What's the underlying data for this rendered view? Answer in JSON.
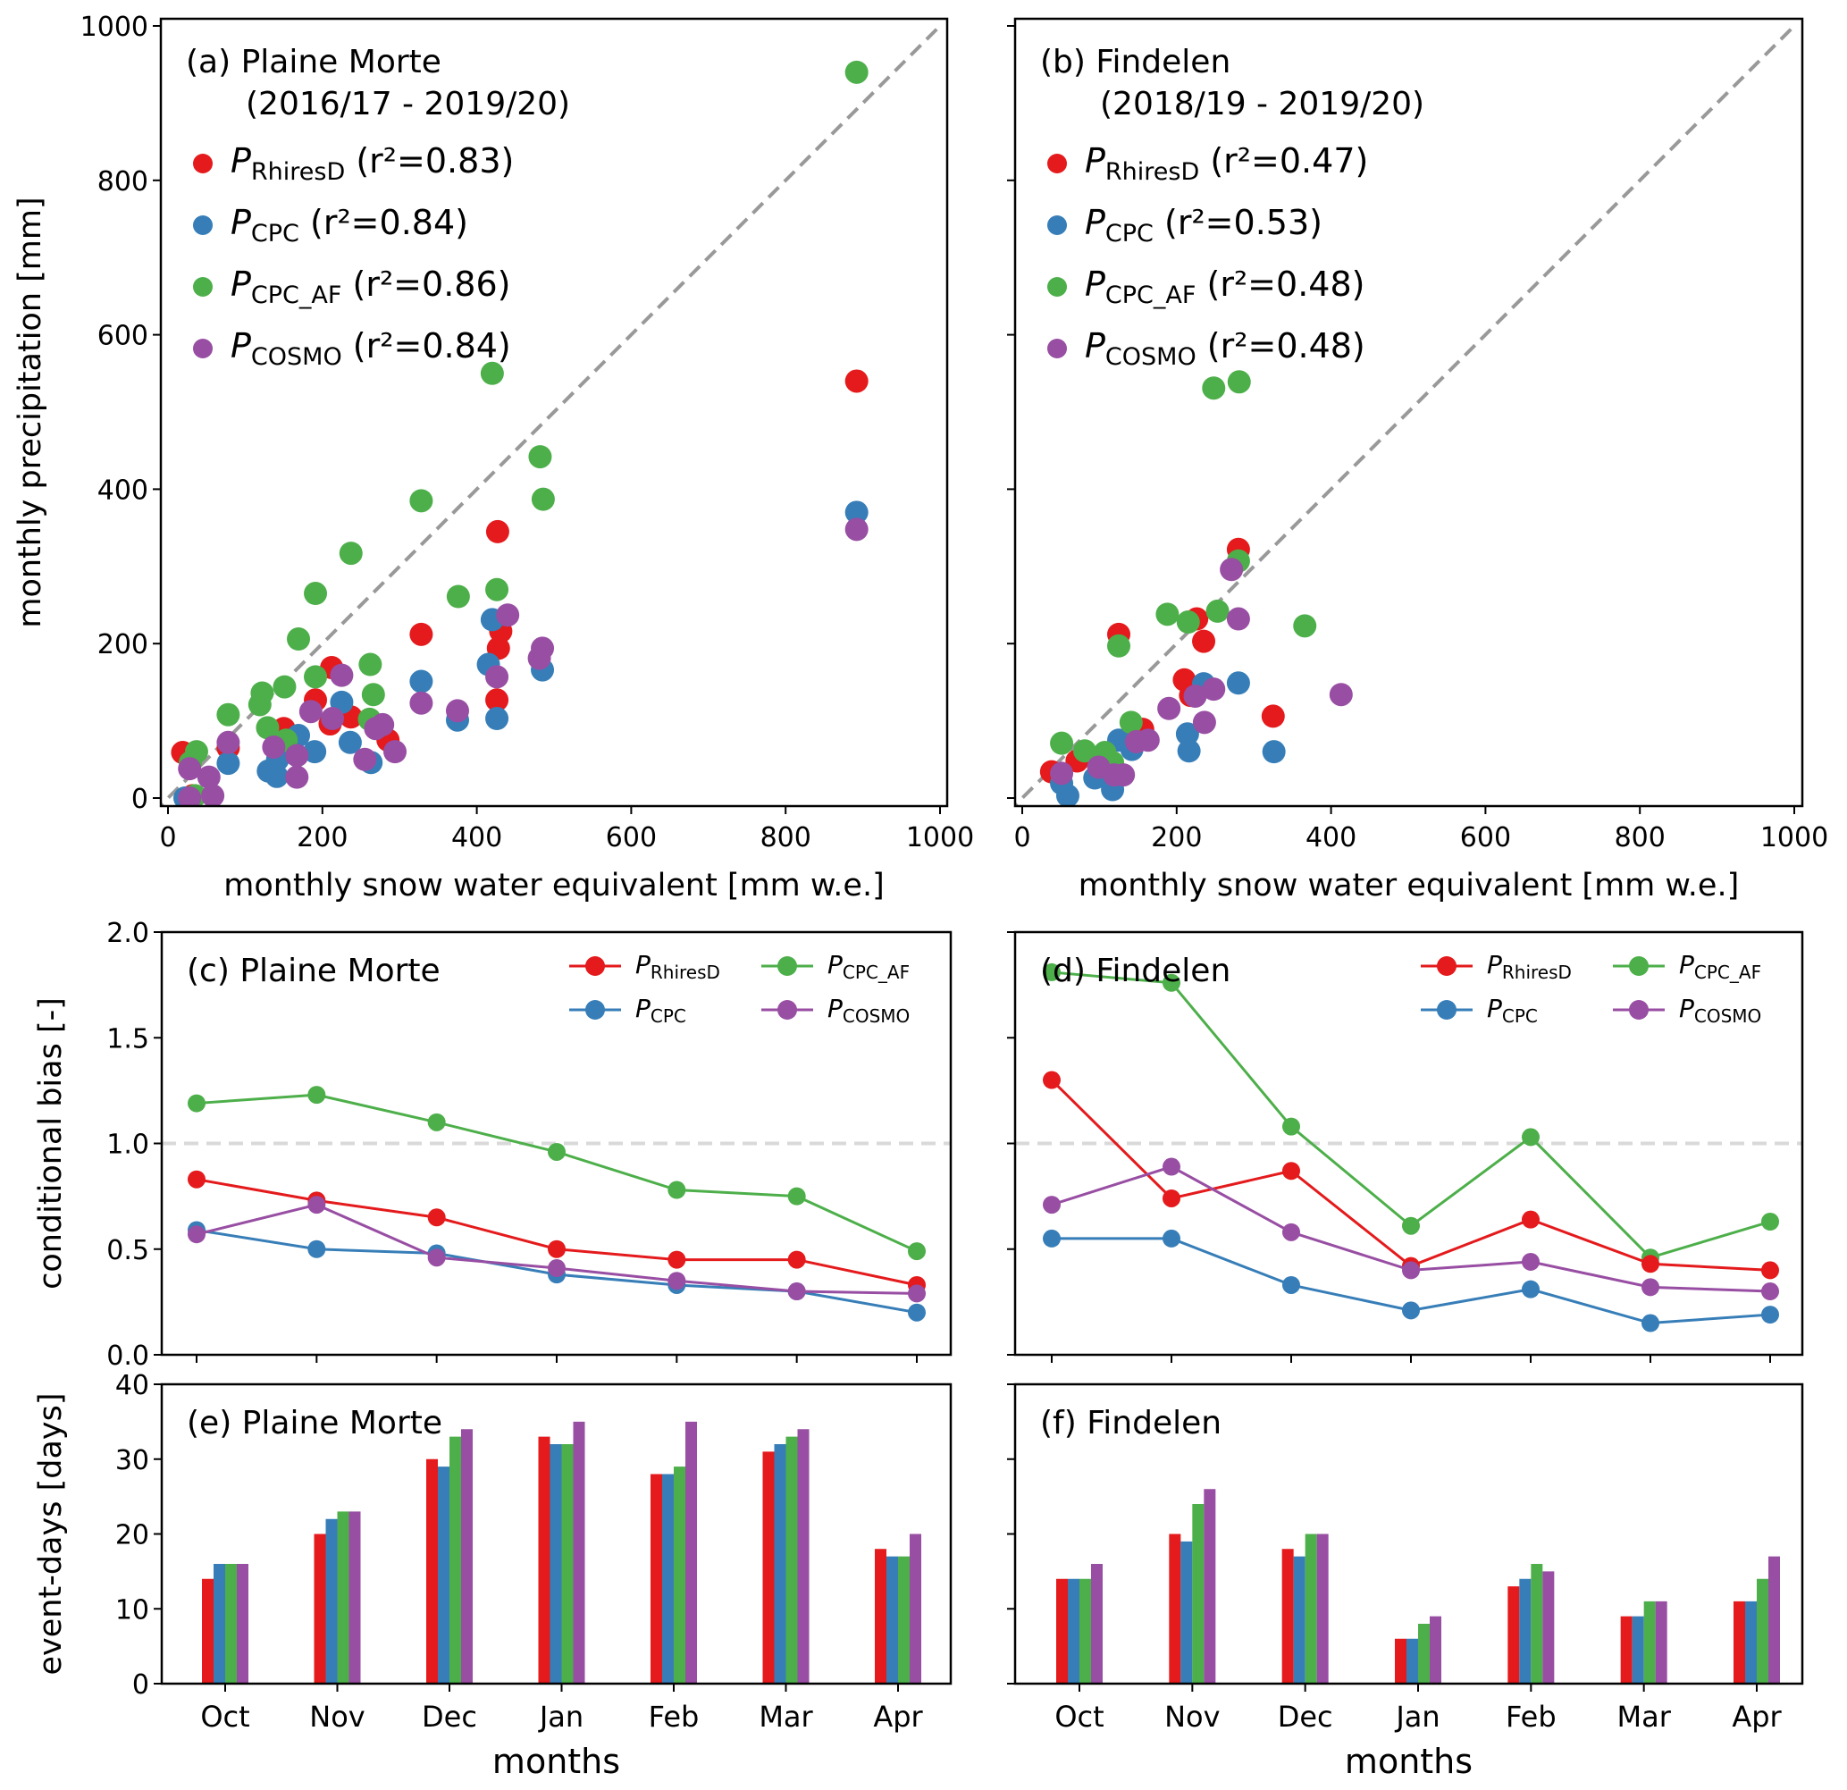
{
  "figure": {
    "colors": {
      "RhiresD": "#e41a1c",
      "CPC": "#377eb8",
      "CPC_AF": "#4daf4a",
      "COSMO": "#984ea3",
      "one_to_one": "#999999",
      "reference_line": "#d9d9d9"
    }
  },
  "chart_data": [
    {
      "id": "a",
      "type": "scatter",
      "title": "(a) Plaine Morte",
      "subtitle": "(2016/17 - 2019/20)",
      "xlabel": "monthly snow water equivalent [mm w.e.]",
      "ylabel": "monthly precipitation [mm]",
      "xlim": [
        0,
        1000
      ],
      "ylim": [
        0,
        1000
      ],
      "xticks": [
        "0",
        "200",
        "400",
        "600",
        "800",
        "1000"
      ],
      "yticks": [
        "0",
        "200",
        "400",
        "600",
        "800",
        "1000"
      ],
      "one_to_one_line": true,
      "legend": [
        {
          "key": "RhiresD",
          "label": "P",
          "sub": "RhiresD",
          "stat": " (r²=0.83)"
        },
        {
          "key": "CPC",
          "label": "P",
          "sub": "CPC",
          "stat": " (r²=0.84)"
        },
        {
          "key": "CPC_AF",
          "label": "P",
          "sub": "CPC_AF",
          "stat": " (r²=0.86)"
        },
        {
          "key": "COSMO",
          "label": "P",
          "sub": "COSMO",
          "stat": " (r²=0.84)"
        }
      ],
      "series": [
        {
          "key": "RhiresD",
          "name": "P_RhiresD",
          "points": [
            [
              892,
              540
            ],
            [
              427,
              345
            ],
            [
              328,
              212
            ],
            [
              431,
              216
            ],
            [
              428,
              194
            ],
            [
              426,
              127
            ],
            [
              212,
              169
            ],
            [
              191,
              127
            ],
            [
              237,
              105
            ],
            [
              210,
              96
            ],
            [
              150,
              90
            ],
            [
              285,
              75
            ],
            [
              19,
              59
            ],
            [
              142,
              62
            ],
            [
              78,
              65
            ],
            [
              32,
              3
            ]
          ]
        },
        {
          "key": "CPC",
          "name": "P_CPC",
          "points": [
            [
              892,
              370
            ],
            [
              420,
              231
            ],
            [
              415,
              173
            ],
            [
              485,
              166
            ],
            [
              328,
              151
            ],
            [
              375,
              101
            ],
            [
              426,
              103
            ],
            [
              225,
              124
            ],
            [
              236,
              72
            ],
            [
              263,
              46
            ],
            [
              190,
              60
            ],
            [
              169,
              81
            ],
            [
              78,
              45
            ],
            [
              130,
              35
            ],
            [
              141,
              28
            ],
            [
              142,
              50
            ],
            [
              22,
              0
            ]
          ]
        },
        {
          "key": "CPC_AF",
          "name": "P_CPC_AF",
          "points": [
            [
              892,
              940
            ],
            [
              482,
              442
            ],
            [
              486,
              387
            ],
            [
              328,
              385
            ],
            [
              237,
              317
            ],
            [
              191,
              265
            ],
            [
              169,
              206
            ],
            [
              376,
              261
            ],
            [
              426,
              270
            ],
            [
              262,
              173
            ],
            [
              266,
              134
            ],
            [
              191,
              157
            ],
            [
              151,
              144
            ],
            [
              122,
              136
            ],
            [
              119,
              121
            ],
            [
              78,
              108
            ],
            [
              129,
              91
            ],
            [
              153,
              75
            ],
            [
              37,
              60
            ],
            [
              261,
              102
            ],
            [
              29,
              46
            ],
            [
              420,
              550
            ],
            [
              35,
              3
            ]
          ]
        },
        {
          "key": "COSMO",
          "name": "P_COSMO",
          "points": [
            [
              892,
              348
            ],
            [
              440,
              237
            ],
            [
              485,
              194
            ],
            [
              481,
              181
            ],
            [
              426,
              157
            ],
            [
              328,
              123
            ],
            [
              375,
              113
            ],
            [
              225,
              159
            ],
            [
              185,
              112
            ],
            [
              213,
              103
            ],
            [
              278,
              95
            ],
            [
              269,
              90
            ],
            [
              294,
              60
            ],
            [
              255,
              50
            ],
            [
              78,
              72
            ],
            [
              167,
              27
            ],
            [
              137,
              66
            ],
            [
              167,
              55
            ],
            [
              28,
              38
            ],
            [
              53,
              27
            ],
            [
              58,
              3
            ],
            [
              28,
              0
            ]
          ]
        }
      ]
    },
    {
      "id": "b",
      "type": "scatter",
      "title": "(b) Findelen",
      "subtitle": "(2018/19 - 2019/20)",
      "xlabel": "monthly snow water equivalent [mm w.e.]",
      "ylabel": "",
      "xlim": [
        0,
        1000
      ],
      "ylim": [
        0,
        1000
      ],
      "xticks": [
        "0",
        "200",
        "400",
        "600",
        "800",
        "1000"
      ],
      "yticks": [],
      "one_to_one_line": true,
      "legend": [
        {
          "key": "RhiresD",
          "label": "P",
          "sub": "RhiresD",
          "stat": " (r²=0.47)"
        },
        {
          "key": "CPC",
          "label": "P",
          "sub": "CPC",
          "stat": " (r²=0.53)"
        },
        {
          "key": "CPC_AF",
          "label": "P",
          "sub": "CPC_AF",
          "stat": " (r²=0.48)"
        },
        {
          "key": "COSMO",
          "label": "P",
          "sub": "COSMO",
          "stat": " (r²=0.48)"
        }
      ],
      "series": [
        {
          "key": "RhiresD",
          "name": "P_RhiresD",
          "points": [
            [
              280,
              322
            ],
            [
              226,
              232
            ],
            [
              235,
              203
            ],
            [
              125,
              212
            ],
            [
              210,
              153
            ],
            [
              218,
              133
            ],
            [
              325,
              106
            ],
            [
              156,
              89
            ],
            [
              38,
              34
            ],
            [
              71,
              48
            ]
          ]
        },
        {
          "key": "CPC",
          "name": "P_CPC",
          "points": [
            [
              235,
              148
            ],
            [
              280,
              149
            ],
            [
              214,
              83
            ],
            [
              216,
              61
            ],
            [
              326,
              60
            ],
            [
              125,
              75
            ],
            [
              142,
              63
            ],
            [
              94,
              26
            ],
            [
              117,
              11
            ],
            [
              51,
              19
            ],
            [
              59,
              3
            ]
          ]
        },
        {
          "key": "CPC_AF",
          "name": "P_CPC_AF",
          "points": [
            [
              248,
              531
            ],
            [
              281,
              539
            ],
            [
              280,
              307
            ],
            [
              188,
              238
            ],
            [
              215,
              228
            ],
            [
              253,
              242
            ],
            [
              366,
              223
            ],
            [
              125,
              197
            ],
            [
              141,
              98
            ],
            [
              51,
              71
            ],
            [
              81,
              61
            ],
            [
              107,
              59
            ],
            [
              117,
              46
            ]
          ]
        },
        {
          "key": "COSMO",
          "name": "P_COSMO",
          "points": [
            [
              271,
              296
            ],
            [
              280,
              232
            ],
            [
              248,
              141
            ],
            [
              224,
              132
            ],
            [
              190,
              116
            ],
            [
              236,
              98
            ],
            [
              413,
              134
            ],
            [
              163,
              75
            ],
            [
              148,
              73
            ],
            [
              99,
              40
            ],
            [
              131,
              30
            ],
            [
              119,
              30
            ],
            [
              51,
              32
            ]
          ]
        }
      ]
    },
    {
      "id": "c",
      "type": "line",
      "title": "(c) Plaine Morte",
      "xlabel": "",
      "ylabel": "conditional bias [-]",
      "categories": [
        "Oct",
        "Nov",
        "Dec",
        "Jan",
        "Feb",
        "Mar",
        "Apr"
      ],
      "ylim": [
        0,
        2
      ],
      "yticks": [
        "0.0",
        "0.5",
        "1.0",
        "1.5",
        "2.0"
      ],
      "reference_line": 1.0,
      "legend_position": "top-right",
      "legend": [
        {
          "key": "RhiresD",
          "label": "P",
          "sub": "RhiresD"
        },
        {
          "key": "CPC_AF",
          "label": "P",
          "sub": "CPC_AF"
        },
        {
          "key": "CPC",
          "label": "P",
          "sub": "CPC"
        },
        {
          "key": "COSMO",
          "label": "P",
          "sub": "COSMO"
        }
      ],
      "series": [
        {
          "key": "RhiresD",
          "name": "P_RhiresD",
          "values": [
            0.83,
            0.73,
            0.65,
            0.5,
            0.45,
            0.45,
            0.33
          ]
        },
        {
          "key": "CPC",
          "name": "P_CPC",
          "values": [
            0.59,
            0.5,
            0.48,
            0.38,
            0.33,
            0.3,
            0.2
          ]
        },
        {
          "key": "CPC_AF",
          "name": "P_CPC_AF",
          "values": [
            1.19,
            1.23,
            1.1,
            0.96,
            0.78,
            0.75,
            0.49
          ]
        },
        {
          "key": "COSMO",
          "name": "P_COSMO",
          "values": [
            0.57,
            0.71,
            0.46,
            0.41,
            0.35,
            0.3,
            0.29
          ]
        }
      ]
    },
    {
      "id": "d",
      "type": "line",
      "title": "(d) Findelen",
      "xlabel": "",
      "ylabel": "",
      "categories": [
        "Oct",
        "Nov",
        "Dec",
        "Jan",
        "Feb",
        "Mar",
        "Apr"
      ],
      "ylim": [
        0,
        2
      ],
      "yticks": [],
      "reference_line": 1.0,
      "legend_position": "top-right",
      "legend": [
        {
          "key": "RhiresD",
          "label": "P",
          "sub": "RhiresD"
        },
        {
          "key": "CPC_AF",
          "label": "P",
          "sub": "CPC_AF"
        },
        {
          "key": "CPC",
          "label": "P",
          "sub": "CPC"
        },
        {
          "key": "COSMO",
          "label": "P",
          "sub": "COSMO"
        }
      ],
      "series": [
        {
          "key": "RhiresD",
          "name": "P_RhiresD",
          "values": [
            1.3,
            0.74,
            0.87,
            0.42,
            0.64,
            0.43,
            0.4
          ]
        },
        {
          "key": "CPC",
          "name": "P_CPC",
          "values": [
            0.55,
            0.55,
            0.33,
            0.21,
            0.31,
            0.15,
            0.19
          ]
        },
        {
          "key": "CPC_AF",
          "name": "P_CPC_AF",
          "values": [
            1.81,
            1.76,
            1.08,
            0.61,
            1.03,
            0.46,
            0.63
          ]
        },
        {
          "key": "COSMO",
          "name": "P_COSMO",
          "values": [
            0.71,
            0.89,
            0.58,
            0.4,
            0.44,
            0.32,
            0.3
          ]
        }
      ]
    },
    {
      "id": "e",
      "type": "bar",
      "title": "(e) Plaine Morte",
      "xlabel": "months",
      "ylabel": "event-days [days]",
      "categories": [
        "Oct",
        "Nov",
        "Dec",
        "Jan",
        "Feb",
        "Mar",
        "Apr"
      ],
      "ylim": [
        0,
        40
      ],
      "yticks": [
        "0",
        "10",
        "20",
        "30",
        "40"
      ],
      "series": [
        {
          "key": "RhiresD",
          "name": "P_RhiresD",
          "values": [
            14,
            20,
            30,
            33,
            28,
            31,
            18
          ]
        },
        {
          "key": "CPC",
          "name": "P_CPC",
          "values": [
            16,
            22,
            29,
            32,
            28,
            32,
            17
          ]
        },
        {
          "key": "CPC_AF",
          "name": "P_CPC_AF",
          "values": [
            16,
            23,
            33,
            32,
            29,
            33,
            17
          ]
        },
        {
          "key": "COSMO",
          "name": "P_COSMO",
          "values": [
            16,
            23,
            34,
            35,
            35,
            34,
            20
          ]
        }
      ]
    },
    {
      "id": "f",
      "type": "bar",
      "title": "(f) Findelen",
      "xlabel": "months",
      "ylabel": "",
      "categories": [
        "Oct",
        "Nov",
        "Dec",
        "Jan",
        "Feb",
        "Mar",
        "Apr"
      ],
      "ylim": [
        0,
        40
      ],
      "yticks": [],
      "series": [
        {
          "key": "RhiresD",
          "name": "P_RhiresD",
          "values": [
            14,
            20,
            18,
            6,
            13,
            9,
            11
          ]
        },
        {
          "key": "CPC",
          "name": "P_CPC",
          "values": [
            14,
            19,
            17,
            6,
            14,
            9,
            11
          ]
        },
        {
          "key": "CPC_AF",
          "name": "P_CPC_AF",
          "values": [
            14,
            24,
            20,
            8,
            16,
            11,
            14
          ]
        },
        {
          "key": "COSMO",
          "name": "P_COSMO",
          "values": [
            16,
            26,
            20,
            9,
            15,
            11,
            17
          ]
        }
      ]
    }
  ]
}
